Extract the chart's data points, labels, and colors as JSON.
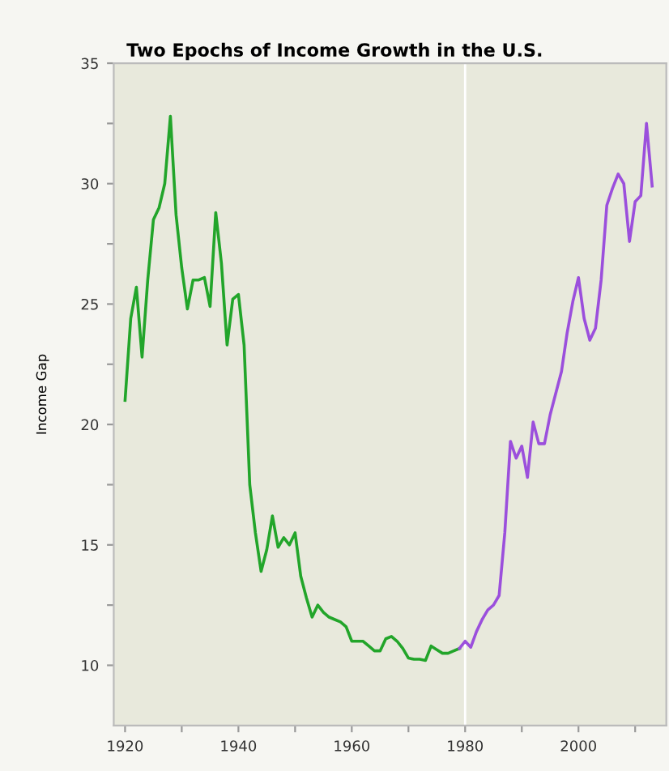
{
  "chart_data": {
    "type": "line",
    "title": "Two Epochs of Income Growth in the U.S.",
    "ylabel": "Income Gap",
    "series": [
      {
        "color": "#22a52a",
        "x": [
          1920,
          1921,
          1922,
          1923,
          1924,
          1925,
          1926,
          1927,
          1928,
          1929,
          1930,
          1931,
          1932,
          1933,
          1934,
          1935,
          1936,
          1937,
          1938,
          1939,
          1940,
          1941,
          1942,
          1943,
          1944,
          1945,
          1946,
          1947,
          1948,
          1949,
          1950,
          1951,
          1952,
          1953,
          1954,
          1955,
          1956,
          1957,
          1958,
          1959,
          1960,
          1961,
          1962,
          1963,
          1964,
          1965,
          1966,
          1967,
          1968,
          1969,
          1970,
          1971,
          1972,
          1973,
          1974,
          1975,
          1976,
          1977,
          1978,
          1979
        ],
        "values": [
          21.0,
          24.4,
          25.7,
          22.8,
          26.0,
          28.5,
          29.0,
          30.0,
          32.8,
          28.7,
          26.5,
          24.8,
          26.0,
          26.0,
          26.1,
          24.9,
          28.8,
          26.7,
          23.3,
          25.2,
          25.4,
          23.3,
          17.5,
          15.5,
          13.9,
          14.8,
          16.2,
          14.9,
          15.3,
          15.0,
          15.5,
          13.7,
          12.8,
          12.0,
          12.5,
          12.2,
          12.0,
          11.9,
          11.8,
          11.6,
          11.0,
          11.0,
          11.0,
          10.8,
          10.6,
          10.6,
          11.1,
          11.2,
          11.0,
          10.7,
          10.3,
          10.25,
          10.25,
          10.2,
          10.8,
          10.65,
          10.5,
          10.5,
          10.6,
          10.7
        ]
      },
      {
        "color": "#9b4fdc",
        "x": [
          1979,
          1980,
          1981,
          1982,
          1983,
          1984,
          1985,
          1986,
          1987,
          1988,
          1989,
          1990,
          1991,
          1992,
          1993,
          1994,
          1995,
          1996,
          1997,
          1998,
          1999,
          2000,
          2001,
          2002,
          2003,
          2004,
          2005,
          2006,
          2007,
          2008,
          2009,
          2010,
          2011,
          2012,
          2013
        ],
        "values": [
          10.7,
          11.0,
          10.75,
          11.4,
          11.9,
          12.3,
          12.5,
          12.9,
          15.5,
          19.3,
          18.6,
          19.1,
          17.8,
          20.1,
          19.2,
          19.2,
          20.4,
          21.3,
          22.2,
          23.8,
          25.1,
          26.1,
          24.4,
          23.5,
          24.0,
          26.0,
          29.1,
          29.8,
          30.4,
          30.0,
          27.6,
          29.25,
          29.5,
          32.5,
          29.9
        ]
      }
    ],
    "xlim": [
      1918,
      2015.5
    ],
    "ylim": [
      7.5,
      35
    ],
    "xticks": [
      1920,
      {
        "value": 1930,
        "label": null
      },
      1940,
      {
        "value": 1950,
        "label": null
      },
      1960,
      {
        "value": 1970,
        "label": null
      },
      1980,
      {
        "value": 1990,
        "label": null
      },
      2000,
      {
        "value": 2010,
        "label": null
      }
    ],
    "yticks": [
      10,
      {
        "value": 12.5,
        "label": null
      },
      15,
      {
        "value": 17.5,
        "label": null
      },
      20,
      {
        "value": 22.5,
        "label": null
      },
      25,
      {
        "value": 27.5,
        "label": null
      },
      30,
      {
        "value": 32.5,
        "label": null
      },
      35
    ],
    "ref_lines": [
      {
        "axis": "x",
        "value": 1980,
        "color": "#ffffff"
      }
    ],
    "grid": false,
    "legend": false,
    "marker": "none",
    "line_style": "solid"
  }
}
